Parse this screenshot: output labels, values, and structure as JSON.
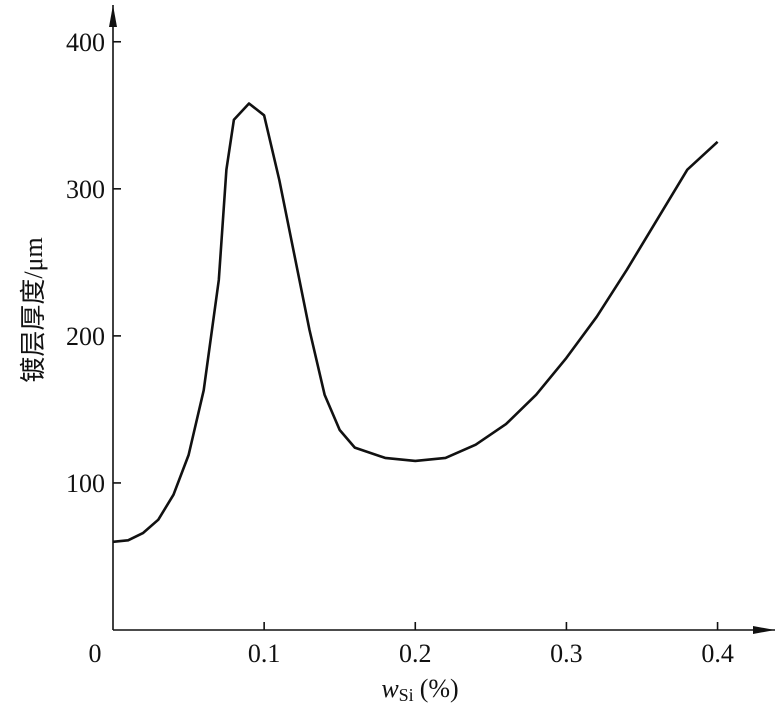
{
  "chart_data": {
    "type": "line",
    "y_label": "镀层厚度/μm",
    "x_label": {
      "main": "w",
      "sub": "Si",
      "unit": "(%)"
    },
    "x": [
      0,
      0.01,
      0.02,
      0.03,
      0.04,
      0.05,
      0.06,
      0.07,
      0.075,
      0.08,
      0.09,
      0.1,
      0.11,
      0.12,
      0.13,
      0.14,
      0.15,
      0.16,
      0.18,
      0.2,
      0.22,
      0.24,
      0.26,
      0.28,
      0.3,
      0.32,
      0.34,
      0.36,
      0.38,
      0.4
    ],
    "series": [
      {
        "color": "#111111",
        "values": [
          60,
          61,
          66,
          75,
          92,
          119,
          163,
          238,
          313,
          347,
          358,
          350,
          306,
          255,
          204,
          160,
          136,
          124,
          117,
          115,
          117,
          126,
          140,
          160,
          185,
          213,
          245,
          279,
          313,
          332
        ]
      }
    ],
    "xlim": [
      0,
      0.438
    ],
    "ylim": [
      0,
      425
    ],
    "xticks": [
      0,
      0.1,
      0.2,
      0.3,
      0.4
    ],
    "yticks": [
      100,
      200,
      300,
      400
    ]
  }
}
